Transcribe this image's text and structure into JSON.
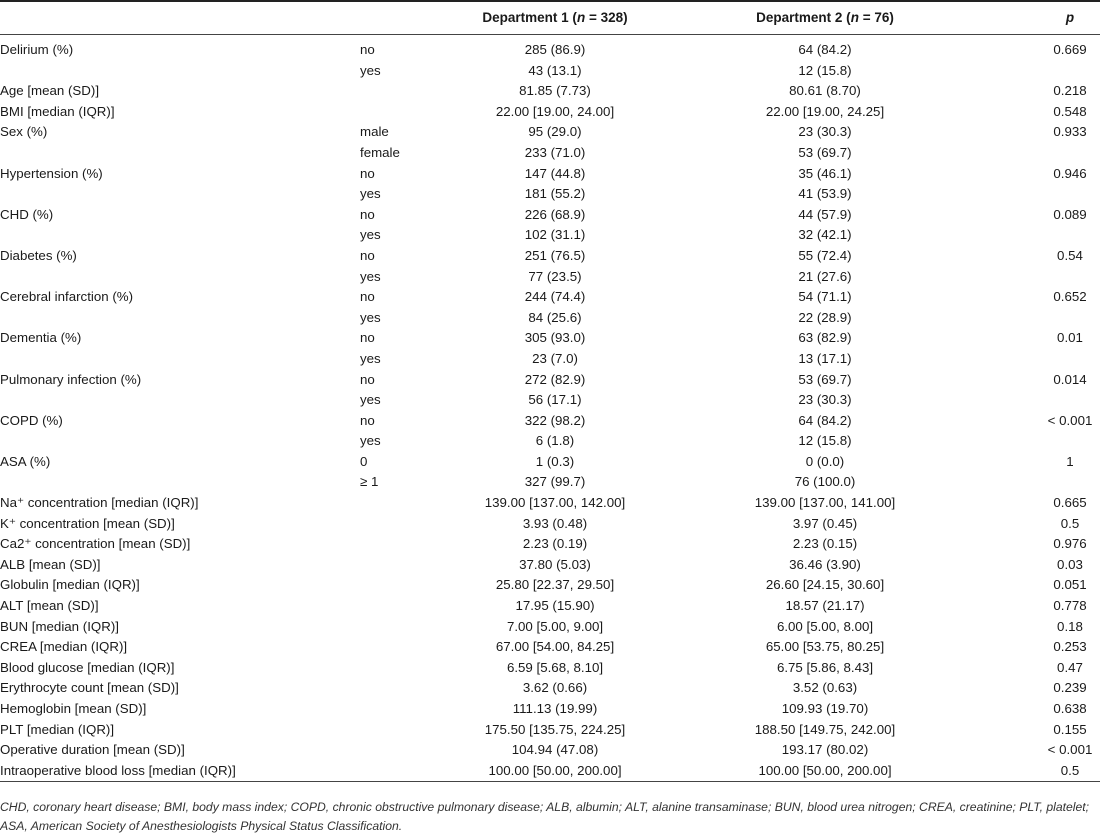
{
  "header": {
    "dept1_label": "Department 1 (",
    "dept1_n": "n",
    "dept1_rest": " = 328)",
    "dept2_label": "Department 2 (",
    "dept2_n": "n",
    "dept2_rest": " = 76)",
    "p_label": "p"
  },
  "rows": [
    {
      "variable": "Delirium (%)",
      "level": "no",
      "d1": "285 (86.9)",
      "d2": "64 (84.2)",
      "p": "0.669"
    },
    {
      "variable": "",
      "level": "yes",
      "d1": "43 (13.1)",
      "d2": "12 (15.8)",
      "p": ""
    },
    {
      "variable": "Age [mean (SD)]",
      "level": "",
      "d1": "81.85 (7.73)",
      "d2": "80.61 (8.70)",
      "p": "0.218"
    },
    {
      "variable": "BMI [median (IQR)]",
      "level": "",
      "d1": "22.00 [19.00, 24.00]",
      "d2": "22.00 [19.00, 24.25]",
      "p": "0.548"
    },
    {
      "variable": "Sex (%)",
      "level": "male",
      "d1": "95 (29.0)",
      "d2": "23 (30.3)",
      "p": "0.933"
    },
    {
      "variable": "",
      "level": "female",
      "d1": "233 (71.0)",
      "d2": "53 (69.7)",
      "p": ""
    },
    {
      "variable": "Hypertension (%)",
      "level": "no",
      "d1": "147 (44.8)",
      "d2": "35 (46.1)",
      "p": "0.946"
    },
    {
      "variable": "",
      "level": "yes",
      "d1": "181 (55.2)",
      "d2": "41 (53.9)",
      "p": ""
    },
    {
      "variable": "CHD (%)",
      "level": "no",
      "d1": "226 (68.9)",
      "d2": "44 (57.9)",
      "p": "0.089"
    },
    {
      "variable": "",
      "level": "yes",
      "d1": "102 (31.1)",
      "d2": "32 (42.1)",
      "p": ""
    },
    {
      "variable": "Diabetes (%)",
      "level": "no",
      "d1": "251 (76.5)",
      "d2": "55 (72.4)",
      "p": "0.54"
    },
    {
      "variable": "",
      "level": "yes",
      "d1": "77 (23.5)",
      "d2": "21 (27.6)",
      "p": ""
    },
    {
      "variable": "Cerebral infarction (%)",
      "level": "no",
      "d1": "244 (74.4)",
      "d2": "54 (71.1)",
      "p": "0.652"
    },
    {
      "variable": "",
      "level": "yes",
      "d1": "84 (25.6)",
      "d2": "22 (28.9)",
      "p": ""
    },
    {
      "variable": "Dementia (%)",
      "level": "no",
      "d1": "305 (93.0)",
      "d2": "63 (82.9)",
      "p": "0.01"
    },
    {
      "variable": "",
      "level": "yes",
      "d1": "23 (7.0)",
      "d2": "13 (17.1)",
      "p": ""
    },
    {
      "variable": "Pulmonary infection (%)",
      "level": "no",
      "d1": "272 (82.9)",
      "d2": "53 (69.7)",
      "p": "0.014"
    },
    {
      "variable": "",
      "level": "yes",
      "d1": "56 (17.1)",
      "d2": "23 (30.3)",
      "p": ""
    },
    {
      "variable": "COPD (%)",
      "level": "no",
      "d1": "322 (98.2)",
      "d2": "64 (84.2)",
      "p": "< 0.001"
    },
    {
      "variable": "",
      "level": "yes",
      "d1": "6 (1.8)",
      "d2": "12 (15.8)",
      "p": ""
    },
    {
      "variable": "ASA (%)",
      "level": "0",
      "d1": "1 (0.3)",
      "d2": "0 (0.0)",
      "p": "1"
    },
    {
      "variable": "",
      "level": "≥ 1",
      "d1": "327 (99.7)",
      "d2": "76 (100.0)",
      "p": ""
    },
    {
      "variable": "Na⁺ concentration [median (IQR)]",
      "level": "",
      "d1": "139.00 [137.00, 142.00]",
      "d2": "139.00 [137.00, 141.00]",
      "p": "0.665"
    },
    {
      "variable": "K⁺ concentration [mean (SD)]",
      "level": "",
      "d1": "3.93 (0.48)",
      "d2": "3.97 (0.45)",
      "p": "0.5"
    },
    {
      "variable": "Ca2⁺ concentration [mean (SD)]",
      "level": "",
      "d1": "2.23 (0.19)",
      "d2": "2.23 (0.15)",
      "p": "0.976"
    },
    {
      "variable": "ALB [mean (SD)]",
      "level": "",
      "d1": "37.80 (5.03)",
      "d2": "36.46 (3.90)",
      "p": "0.03"
    },
    {
      "variable": "Globulin [median (IQR)]",
      "level": "",
      "d1": "25.80 [22.37, 29.50]",
      "d2": "26.60 [24.15, 30.60]",
      "p": "0.051"
    },
    {
      "variable": "ALT [mean (SD)]",
      "level": "",
      "d1": "17.95 (15.90)",
      "d2": "18.57 (21.17)",
      "p": "0.778"
    },
    {
      "variable": "BUN [median (IQR)]",
      "level": "",
      "d1": "7.00 [5.00, 9.00]",
      "d2": "6.00 [5.00, 8.00]",
      "p": "0.18"
    },
    {
      "variable": "CREA [median (IQR)]",
      "level": "",
      "d1": "67.00 [54.00, 84.25]",
      "d2": "65.00 [53.75, 80.25]",
      "p": "0.253"
    },
    {
      "variable": "Blood glucose [median (IQR)]",
      "level": "",
      "d1": "6.59 [5.68, 8.10]",
      "d2": "6.75 [5.86, 8.43]",
      "p": "0.47"
    },
    {
      "variable": "Erythrocyte count [mean (SD)]",
      "level": "",
      "d1": "3.62 (0.66)",
      "d2": "3.52 (0.63)",
      "p": "0.239"
    },
    {
      "variable": "Hemoglobin [mean (SD)]",
      "level": "",
      "d1": "111.13 (19.99)",
      "d2": "109.93 (19.70)",
      "p": "0.638"
    },
    {
      "variable": "PLT [median (IQR)]",
      "level": "",
      "d1": "175.50 [135.75, 224.25]",
      "d2": "188.50 [149.75, 242.00]",
      "p": "0.155"
    },
    {
      "variable": "Operative duration [mean (SD)]",
      "level": "",
      "d1": "104.94 (47.08)",
      "d2": "193.17 (80.02)",
      "p": "< 0.001"
    },
    {
      "variable": "Intraoperative blood loss [median (IQR)]",
      "level": "",
      "d1": "100.00 [50.00, 200.00]",
      "d2": "100.00 [50.00, 200.00]",
      "p": "0.5"
    }
  ],
  "footnote": "CHD, coronary heart disease; BMI, body mass index; COPD, chronic obstructive pulmonary disease; ALB, albumin; ALT, alanine transaminase; BUN, blood urea nitrogen; CREA, creatinine; PLT, platelet; ASA, American Society of Anesthesiologists Physical Status Classification."
}
